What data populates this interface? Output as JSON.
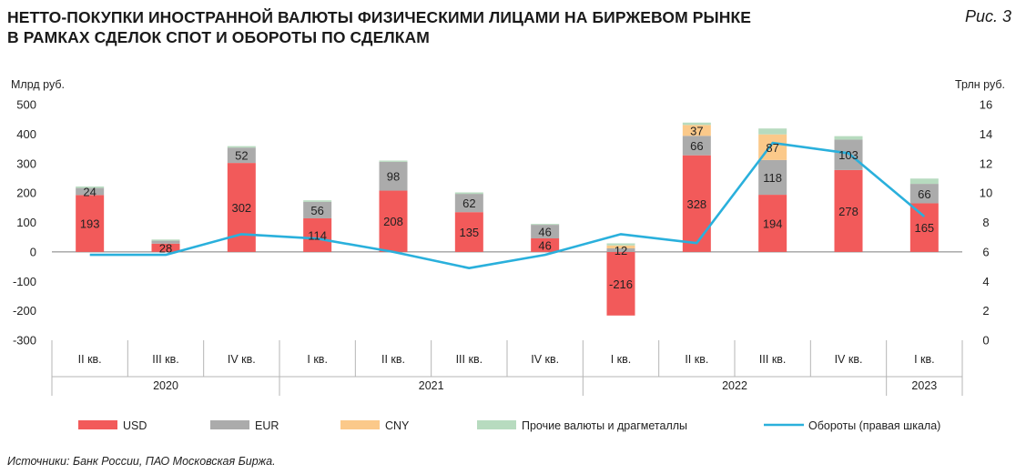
{
  "title_line1": "НЕТТО-ПОКУПКИ ИНОСТРАННОЙ ВАЛЮТЫ ФИЗИЧЕСКИМИ ЛИЦАМИ НА БИРЖЕВОМ РЫНКЕ",
  "title_line2": "В РАМКАХ СДЕЛОК СПОТ И ОБОРОТЫ ПО СДЕЛКАМ",
  "figure_label": "Рис. 3",
  "source": "Источники: Банк России, ПАО Московская Биржа.",
  "colors": {
    "usd": "#f25a5a",
    "eur": "#ababab",
    "cny": "#fbc98a",
    "other": "#b7dbbf",
    "turnover": "#2ab0dc"
  },
  "chart_data": {
    "type": "bar",
    "stacked": true,
    "ylabel_left": "Млрд руб.",
    "ylabel_right": "Трлн руб.",
    "ylim_left": [
      -300,
      500
    ],
    "yticks_left": [
      "500",
      "400",
      "300",
      "200",
      "100",
      "0",
      "-100",
      "-200",
      "-300"
    ],
    "ylim_right": [
      0,
      16
    ],
    "yticks_right": [
      "16",
      "14",
      "12",
      "10",
      "8",
      "6",
      "4",
      "2",
      "0"
    ],
    "categories": [
      "II кв.",
      "III кв.",
      "IV кв.",
      "I кв.",
      "II кв.",
      "III кв.",
      "IV кв.",
      "I кв.",
      "II кв.",
      "III кв.",
      "IV кв.",
      "I кв."
    ],
    "years": [
      {
        "label": "2020",
        "from": 0,
        "to": 2
      },
      {
        "label": "2021",
        "from": 3,
        "to": 6
      },
      {
        "label": "2022",
        "from": 7,
        "to": 10
      },
      {
        "label": "2023",
        "from": 11,
        "to": 11
      }
    ],
    "series": [
      {
        "name": "USD",
        "key": "usd",
        "values": [
          193,
          28,
          302,
          114,
          208,
          135,
          46,
          -216,
          328,
          194,
          278,
          165
        ],
        "labels": [
          "193",
          "28",
          "302",
          "114",
          "208",
          "135",
          "46",
          "-216",
          "328",
          "194",
          "278",
          "165"
        ]
      },
      {
        "name": "EUR",
        "key": "eur",
        "values": [
          24,
          10,
          52,
          56,
          98,
          62,
          46,
          12,
          66,
          118,
          103,
          66
        ],
        "labels": [
          "24",
          "",
          "52",
          "56",
          "98",
          "62",
          "46",
          "12",
          "66",
          "118",
          "103",
          "66"
        ]
      },
      {
        "name": "CNY",
        "key": "cny",
        "values": [
          0,
          0,
          0,
          0,
          0,
          0,
          0,
          10,
          37,
          87,
          0,
          0
        ],
        "labels": [
          "",
          "",
          "",
          "",
          "",
          "",
          "",
          "",
          "37",
          "87",
          "",
          ""
        ]
      },
      {
        "name": "Прочие валюты и драгметаллы",
        "key": "other",
        "values": [
          5,
          4,
          5,
          5,
          4,
          5,
          3,
          7,
          8,
          20,
          12,
          18
        ],
        "labels": [
          "",
          "",
          "",
          "",
          "",
          "",
          "",
          "",
          "",
          "",
          "",
          ""
        ]
      }
    ],
    "line": {
      "name": "Обороты (правая шкала)",
      "key": "turnover",
      "axis": "right",
      "values": [
        5.8,
        5.8,
        7.2,
        6.9,
        6.0,
        4.9,
        5.8,
        7.2,
        6.6,
        13.4,
        12.7,
        8.4
      ]
    },
    "grid": false,
    "legend_position": "bottom"
  }
}
